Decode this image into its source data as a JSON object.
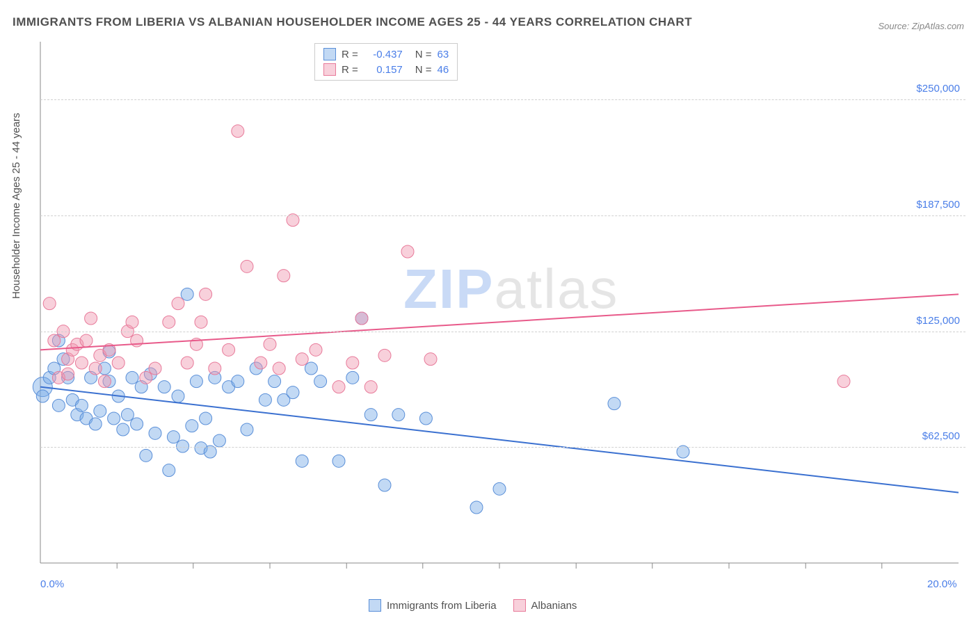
{
  "title": "IMMIGRANTS FROM LIBERIA VS ALBANIAN HOUSEHOLDER INCOME AGES 25 - 44 YEARS CORRELATION CHART",
  "source": "Source: ZipAtlas.com",
  "y_axis_label": "Householder Income Ages 25 - 44 years",
  "watermark_zip": "ZIP",
  "watermark_atlas": "atlas",
  "chart": {
    "type": "scatter",
    "background_color": "#ffffff",
    "grid_color": "#d0d0d0",
    "axis_color": "#888888",
    "xlim": [
      0,
      20
    ],
    "ylim": [
      0,
      281250
    ],
    "x_ticks": [
      0,
      20
    ],
    "x_tick_labels": [
      "0.0%",
      "20.0%"
    ],
    "x_minor_ticks": [
      1.67,
      3.33,
      5.0,
      6.67,
      8.33,
      10.0,
      11.67,
      13.33,
      15.0,
      16.67,
      18.33
    ],
    "y_ticks": [
      62500,
      125000,
      187500,
      250000
    ],
    "y_tick_labels": [
      "$62,500",
      "$125,000",
      "$187,500",
      "$250,000"
    ],
    "series": [
      {
        "name": "Immigrants from Liberia",
        "marker_color_fill": "rgba(120,170,230,0.45)",
        "marker_color_stroke": "#5a8fd8",
        "marker_radius": 9,
        "line_color": "#3a70d0",
        "line_width": 2,
        "R": "-0.437",
        "N": "63",
        "trend": {
          "x1": 0,
          "y1": 95000,
          "x2": 20,
          "y2": 38000
        },
        "points": [
          {
            "x": 0.05,
            "y": 95000,
            "r": 14
          },
          {
            "x": 0.05,
            "y": 90000
          },
          {
            "x": 0.2,
            "y": 100000
          },
          {
            "x": 0.3,
            "y": 105000
          },
          {
            "x": 0.4,
            "y": 85000
          },
          {
            "x": 0.5,
            "y": 110000
          },
          {
            "x": 0.6,
            "y": 100000
          },
          {
            "x": 0.7,
            "y": 88000
          },
          {
            "x": 0.8,
            "y": 80000
          },
          {
            "x": 0.9,
            "y": 85000
          },
          {
            "x": 1.0,
            "y": 78000
          },
          {
            "x": 1.1,
            "y": 100000
          },
          {
            "x": 1.2,
            "y": 75000
          },
          {
            "x": 1.3,
            "y": 82000
          },
          {
            "x": 1.4,
            "y": 105000
          },
          {
            "x": 1.5,
            "y": 98000
          },
          {
            "x": 1.6,
            "y": 78000
          },
          {
            "x": 1.7,
            "y": 90000
          },
          {
            "x": 1.8,
            "y": 72000
          },
          {
            "x": 1.9,
            "y": 80000
          },
          {
            "x": 2.0,
            "y": 100000
          },
          {
            "x": 2.1,
            "y": 75000
          },
          {
            "x": 2.2,
            "y": 95000
          },
          {
            "x": 2.3,
            "y": 58000
          },
          {
            "x": 2.4,
            "y": 102000
          },
          {
            "x": 2.5,
            "y": 70000
          },
          {
            "x": 2.7,
            "y": 95000
          },
          {
            "x": 2.8,
            "y": 50000
          },
          {
            "x": 2.9,
            "y": 68000
          },
          {
            "x": 3.0,
            "y": 90000
          },
          {
            "x": 3.1,
            "y": 63000
          },
          {
            "x": 3.2,
            "y": 145000
          },
          {
            "x": 3.3,
            "y": 74000
          },
          {
            "x": 3.4,
            "y": 98000
          },
          {
            "x": 3.5,
            "y": 62000
          },
          {
            "x": 3.6,
            "y": 78000
          },
          {
            "x": 3.7,
            "y": 60000
          },
          {
            "x": 3.8,
            "y": 100000
          },
          {
            "x": 3.9,
            "y": 66000
          },
          {
            "x": 4.1,
            "y": 95000
          },
          {
            "x": 4.3,
            "y": 98000
          },
          {
            "x": 4.5,
            "y": 72000
          },
          {
            "x": 4.7,
            "y": 105000
          },
          {
            "x": 4.9,
            "y": 88000
          },
          {
            "x": 5.1,
            "y": 98000
          },
          {
            "x": 5.3,
            "y": 88000
          },
          {
            "x": 5.5,
            "y": 92000
          },
          {
            "x": 5.7,
            "y": 55000
          },
          {
            "x": 5.9,
            "y": 105000
          },
          {
            "x": 6.1,
            "y": 98000
          },
          {
            "x": 6.5,
            "y": 55000
          },
          {
            "x": 6.8,
            "y": 100000
          },
          {
            "x": 7.0,
            "y": 132000
          },
          {
            "x": 7.2,
            "y": 80000
          },
          {
            "x": 7.5,
            "y": 42000
          },
          {
            "x": 7.8,
            "y": 80000
          },
          {
            "x": 8.4,
            "y": 78000
          },
          {
            "x": 9.5,
            "y": 30000
          },
          {
            "x": 10.0,
            "y": 40000
          },
          {
            "x": 12.5,
            "y": 86000
          },
          {
            "x": 14.0,
            "y": 60000
          },
          {
            "x": 0.4,
            "y": 120000
          },
          {
            "x": 1.5,
            "y": 114000
          }
        ]
      },
      {
        "name": "Albanians",
        "marker_color_fill": "rgba(240,150,175,0.45)",
        "marker_color_stroke": "#e87a9a",
        "marker_radius": 9,
        "line_color": "#e85a8a",
        "line_width": 2,
        "R": "0.157",
        "N": "46",
        "trend": {
          "x1": 0,
          "y1": 115000,
          "x2": 20,
          "y2": 145000
        },
        "points": [
          {
            "x": 0.2,
            "y": 140000
          },
          {
            "x": 0.3,
            "y": 120000
          },
          {
            "x": 0.4,
            "y": 100000
          },
          {
            "x": 0.5,
            "y": 125000
          },
          {
            "x": 0.6,
            "y": 110000
          },
          {
            "x": 0.7,
            "y": 115000
          },
          {
            "x": 0.8,
            "y": 118000
          },
          {
            "x": 0.9,
            "y": 108000
          },
          {
            "x": 1.0,
            "y": 120000
          },
          {
            "x": 1.1,
            "y": 132000
          },
          {
            "x": 1.2,
            "y": 105000
          },
          {
            "x": 1.3,
            "y": 112000
          },
          {
            "x": 1.5,
            "y": 115000
          },
          {
            "x": 1.7,
            "y": 108000
          },
          {
            "x": 1.9,
            "y": 125000
          },
          {
            "x": 2.1,
            "y": 120000
          },
          {
            "x": 2.3,
            "y": 100000
          },
          {
            "x": 2.5,
            "y": 105000
          },
          {
            "x": 2.8,
            "y": 130000
          },
          {
            "x": 3.0,
            "y": 140000
          },
          {
            "x": 3.2,
            "y": 108000
          },
          {
            "x": 3.4,
            "y": 118000
          },
          {
            "x": 3.6,
            "y": 145000
          },
          {
            "x": 3.8,
            "y": 105000
          },
          {
            "x": 4.1,
            "y": 115000
          },
          {
            "x": 4.3,
            "y": 233000
          },
          {
            "x": 4.5,
            "y": 160000
          },
          {
            "x": 4.8,
            "y": 108000
          },
          {
            "x": 5.0,
            "y": 118000
          },
          {
            "x": 5.2,
            "y": 105000
          },
          {
            "x": 5.3,
            "y": 155000
          },
          {
            "x": 5.5,
            "y": 185000
          },
          {
            "x": 5.7,
            "y": 110000
          },
          {
            "x": 6.0,
            "y": 115000
          },
          {
            "x": 6.5,
            "y": 95000
          },
          {
            "x": 6.8,
            "y": 108000
          },
          {
            "x": 7.0,
            "y": 132000
          },
          {
            "x": 7.2,
            "y": 95000
          },
          {
            "x": 7.5,
            "y": 112000
          },
          {
            "x": 8.0,
            "y": 168000
          },
          {
            "x": 8.5,
            "y": 110000
          },
          {
            "x": 0.6,
            "y": 102000
          },
          {
            "x": 1.4,
            "y": 98000
          },
          {
            "x": 2.0,
            "y": 130000
          },
          {
            "x": 17.5,
            "y": 98000
          },
          {
            "x": 3.5,
            "y": 130000
          }
        ]
      }
    ]
  },
  "legend_bottom": [
    {
      "label": "Immigrants from Liberia",
      "fill": "rgba(120,170,230,0.45)",
      "stroke": "#5a8fd8"
    },
    {
      "label": "Albanians",
      "fill": "rgba(240,150,175,0.45)",
      "stroke": "#e87a9a"
    }
  ]
}
